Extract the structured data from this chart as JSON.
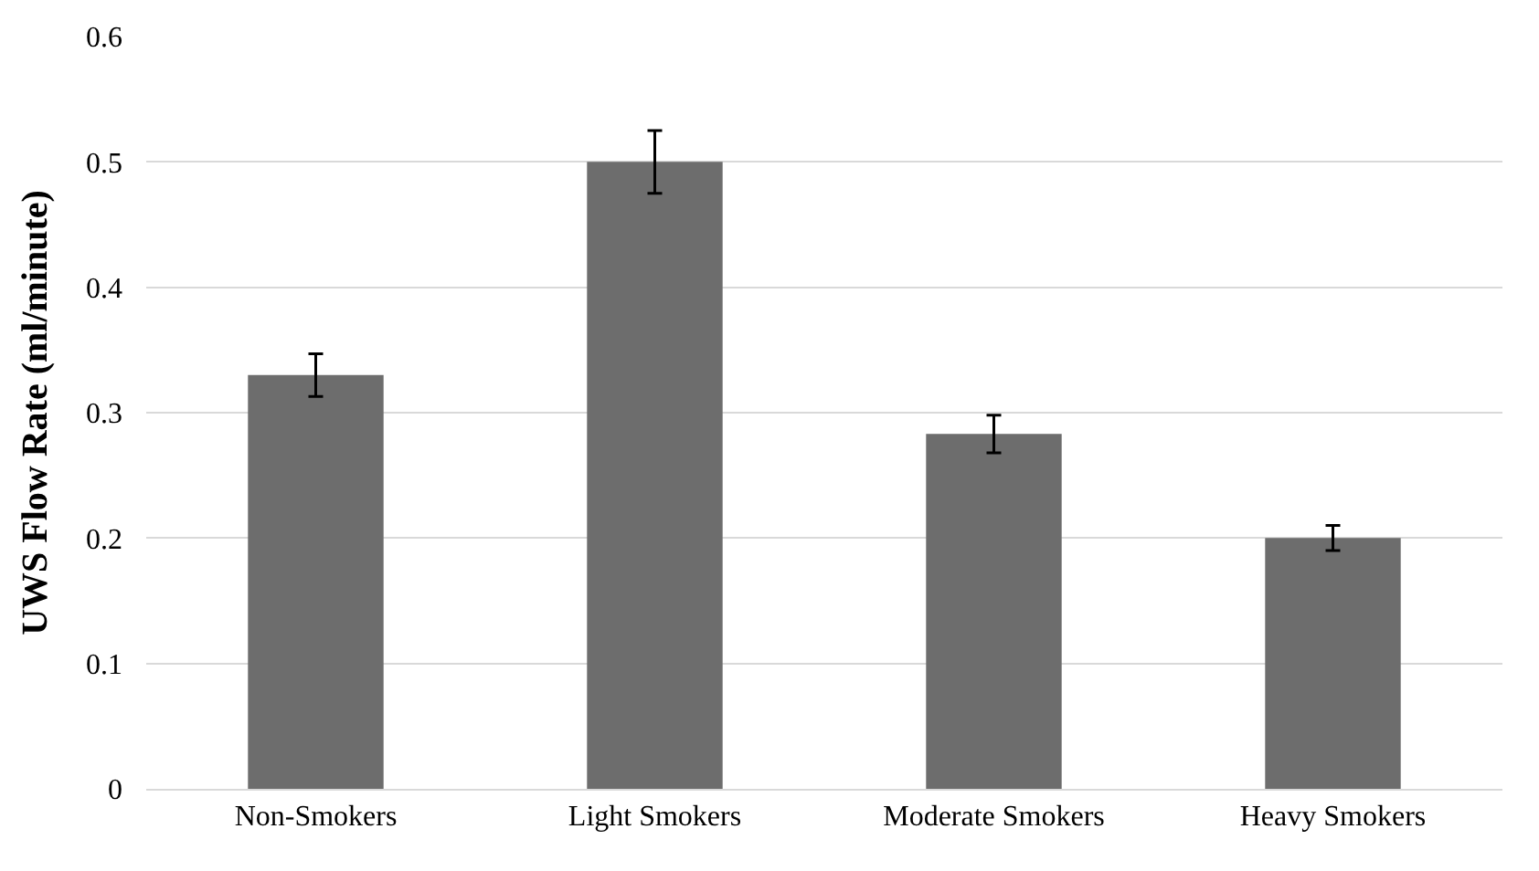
{
  "chart_data": {
    "type": "bar",
    "ylabel": "UWS Flow Rate (ml/minute)",
    "categories": [
      "Non-Smokers",
      "Light Smokers",
      "Moderate Smokers",
      "Heavy Smokers"
    ],
    "values": [
      0.33,
      0.5,
      0.283,
      0.2
    ],
    "errors": [
      0.017,
      0.025,
      0.015,
      0.01
    ],
    "color": "#6d6d6d",
    "ylim": [
      0,
      0.6
    ],
    "yticks": [
      {
        "value": 0,
        "label": "0"
      },
      0.1,
      0.2,
      0.3,
      0.4,
      0.5,
      0.6
    ],
    "grid": "y",
    "legend": false
  }
}
